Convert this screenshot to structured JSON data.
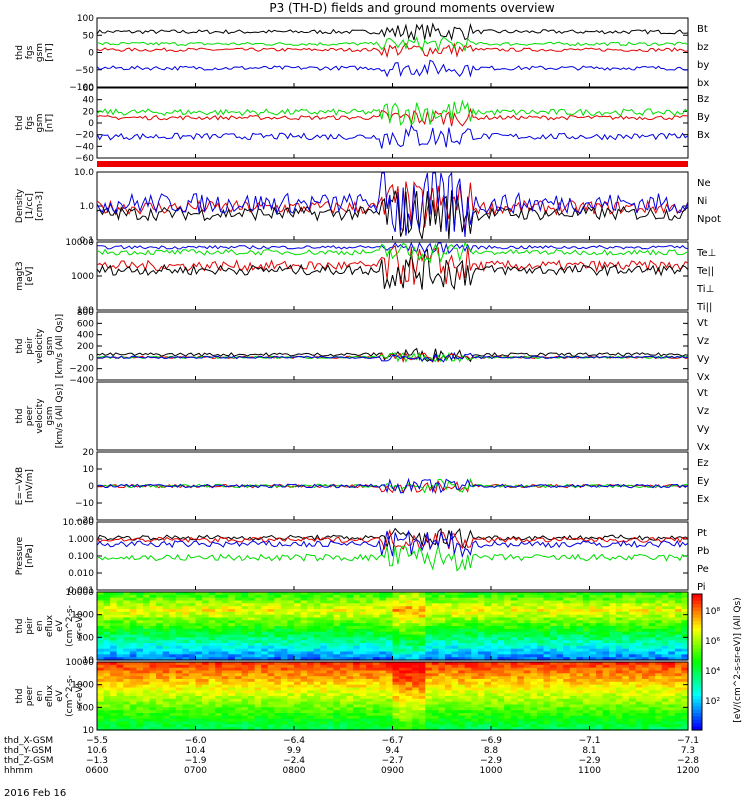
{
  "title": "P3 (TH-D) fields and ground moments overview",
  "date": "2016 Feb 16",
  "colors": {
    "black": "#000000",
    "red": "#e00000",
    "green": "#00dd00",
    "blue": "#0000e0"
  },
  "chart_data": [
    {
      "type": "line",
      "panel": "fgs_gsm",
      "ylabel": [
        "thd",
        "fgs",
        "gsm",
        "[nT]"
      ],
      "yticks": [
        "100",
        "50",
        "0",
        "−50",
        "−100"
      ],
      "ylim": [
        -100,
        100
      ],
      "series": [
        {
          "name": "Bt",
          "color": "black",
          "base": 60,
          "noise": 6
        },
        {
          "name": "bz",
          "color": "red",
          "base": 8,
          "noise": 5
        },
        {
          "name": "by",
          "color": "green",
          "base": 25,
          "noise": 5
        },
        {
          "name": "bx",
          "color": "blue",
          "base": -45,
          "noise": 6
        }
      ]
    },
    {
      "type": "line",
      "panel": "fgs_gsm_2",
      "ylabel": [
        "thd",
        "fgs",
        "gsm",
        "[nT]"
      ],
      "yticks": [
        "60",
        "40",
        "20",
        "0",
        "−20",
        "−40",
        "−60"
      ],
      "ylim": [
        -70,
        60
      ],
      "series": [
        {
          "name": "Bz",
          "color": "red",
          "base": 5,
          "noise": 4
        },
        {
          "name": "By",
          "color": "green",
          "base": 15,
          "noise": 6
        },
        {
          "name": "Bx",
          "color": "blue",
          "base": -30,
          "noise": 6
        }
      ]
    },
    {
      "type": "line",
      "panel": "density",
      "ylabel": [
        "Density",
        "[1/cc]",
        "[cm-3]"
      ],
      "yticks": [
        "10.0",
        "1.0",
        "0.1"
      ],
      "ylim": [
        0.1,
        10
      ],
      "log": true,
      "series": [
        {
          "name": "Ne",
          "color": "red",
          "base": 0.9,
          "noise": 0.2
        },
        {
          "name": "Ni",
          "color": "black",
          "base": 0.6,
          "noise": 0.2
        },
        {
          "name": "Npot",
          "color": "blue",
          "base": 1.2,
          "noise": 0.3
        }
      ]
    },
    {
      "type": "line",
      "panel": "temperature",
      "ylabel": [
        "magt3",
        "[eV]"
      ],
      "yticks": [
        "10000",
        "1000",
        "100"
      ],
      "ylim": [
        100,
        10000
      ],
      "log": true,
      "series": [
        {
          "name": "Te⊥",
          "color": "red",
          "base": 2000,
          "noise": 0.15
        },
        {
          "name": "Te||",
          "color": "black",
          "base": 1500,
          "noise": 0.15
        },
        {
          "name": "Ti⊥",
          "color": "blue",
          "base": 7000,
          "noise": 0.05
        },
        {
          "name": "Ti||",
          "color": "green",
          "base": 5000,
          "noise": 0.08
        }
      ]
    },
    {
      "type": "line",
      "panel": "peir_velocity",
      "ylabel": [
        "thd",
        "peir",
        "velocity",
        "gsm",
        "[km/s (All Qs)]"
      ],
      "yticks": [
        "800",
        "600",
        "400",
        "200",
        "0",
        "−200",
        "−400"
      ],
      "ylim": [
        -400,
        800
      ],
      "series": [
        {
          "name": "Vt",
          "color": "black",
          "base": 50,
          "noise": 30
        },
        {
          "name": "Vz",
          "color": "red",
          "base": 0,
          "noise": 20
        },
        {
          "name": "Vy",
          "color": "green",
          "base": 0,
          "noise": 20
        },
        {
          "name": "Vx",
          "color": "blue",
          "base": 0,
          "noise": 20
        }
      ]
    },
    {
      "type": "line",
      "panel": "peer_velocity",
      "ylabel": [
        "thd",
        "peer",
        "velocity",
        "gsm",
        "[km/s (All Qs)]"
      ],
      "yticks": [],
      "ylim": [
        0,
        1
      ],
      "series": [
        {
          "name": "Vt",
          "color": "black"
        },
        {
          "name": "Vz",
          "color": "red"
        },
        {
          "name": "Vy",
          "color": "green"
        },
        {
          "name": "Vx",
          "color": "blue"
        }
      ]
    },
    {
      "type": "line",
      "panel": "efield",
      "ylabel": [
        "E=−VxB",
        "[mV/m]"
      ],
      "yticks": [
        "20",
        "10",
        "0",
        "−10",
        "−20"
      ],
      "ylim": [
        -20,
        20
      ],
      "series": [
        {
          "name": "Ez",
          "color": "red",
          "base": 0,
          "noise": 1
        },
        {
          "name": "Ey",
          "color": "green",
          "base": 0,
          "noise": 1
        },
        {
          "name": "Ex",
          "color": "blue",
          "base": 0,
          "noise": 1
        }
      ]
    },
    {
      "type": "line",
      "panel": "pressure",
      "ylabel": [
        "Pressure",
        "[nPa]"
      ],
      "yticks": [
        "10.000",
        "1.000",
        "0.100",
        "0.010",
        "0.001"
      ],
      "ylim": [
        0.001,
        10
      ],
      "log": true,
      "series": [
        {
          "name": "Pt",
          "color": "black",
          "base": 1.2,
          "noise": 0.15
        },
        {
          "name": "Pb",
          "color": "red",
          "base": 0.9,
          "noise": 0.15
        },
        {
          "name": "Pe",
          "color": "green",
          "base": 0.08,
          "noise": 0.2
        },
        {
          "name": "Pi",
          "color": "blue",
          "base": 0.5,
          "noise": 0.2
        }
      ]
    },
    {
      "type": "heatmap",
      "panel": "peir_spectrogram",
      "ylabel": [
        "thd",
        "peir",
        "en",
        "eflux",
        "eV",
        "(cm^2-s-",
        "sr-eV)"
      ],
      "yticks": [
        "10000",
        "1000",
        "100",
        "10"
      ],
      "ylim": [
        5,
        30000
      ],
      "log": true
    },
    {
      "type": "heatmap",
      "panel": "peer_spectrogram",
      "ylabel": [
        "thd",
        "peer",
        "en",
        "eflux",
        "eV",
        "(cm^2-s-",
        "sr-eV)"
      ],
      "yticks": [
        "10000",
        "1000",
        "100",
        "10"
      ],
      "ylim": [
        5,
        30000
      ],
      "log": true
    }
  ],
  "colorbar": {
    "ticks": [
      "10⁸",
      "10⁶",
      "10⁴",
      "10²"
    ],
    "label": "[eV/(cm^2-s-sr-eV)] (All Qs)"
  },
  "xaxis": {
    "rows": [
      {
        "label": "thd_X-GSM",
        "values": [
          "−5.5",
          "−6.0",
          "−6.4",
          "−6.7",
          "−6.9",
          "−7.1",
          "−7.1"
        ]
      },
      {
        "label": "thd_Y-GSM",
        "values": [
          "10.6",
          "10.4",
          "9.9",
          "9.4",
          "8.8",
          "8.1",
          "7.3"
        ]
      },
      {
        "label": "thd_Z-GSM",
        "values": [
          "−1.3",
          "−1.9",
          "−2.4",
          "−2.7",
          "−2.9",
          "−2.9",
          "−2.8"
        ]
      },
      {
        "label": "hhmm",
        "values": [
          "0600",
          "0700",
          "0800",
          "0900",
          "1000",
          "1100",
          "1200"
        ]
      }
    ]
  }
}
